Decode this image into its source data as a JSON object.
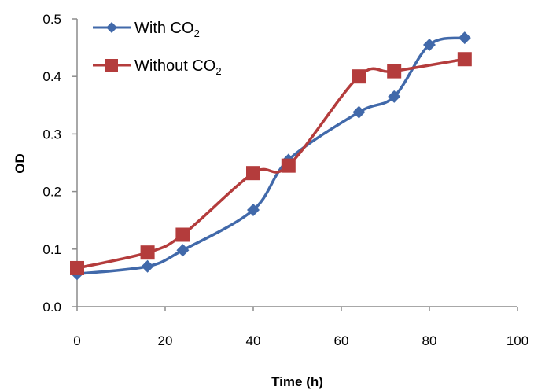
{
  "chart_data": {
    "type": "line",
    "title": "",
    "xlabel": "Time (h)",
    "ylabel": "OD",
    "xlim": [
      0,
      100
    ],
    "ylim": [
      0.0,
      0.5
    ],
    "x_ticks": [
      "0",
      "20",
      "40",
      "60",
      "80",
      "100"
    ],
    "y_ticks": [
      "0.0",
      "0.1",
      "0.2",
      "0.3",
      "0.4",
      "0.5"
    ],
    "grid": false,
    "legend_position": "top-left",
    "series": [
      {
        "name": "With CO2",
        "name_base": "With CO",
        "name_sub": "2",
        "color": "#4169AA",
        "marker": "diamond",
        "x": [
          0,
          16,
          24,
          40,
          48,
          64,
          72,
          80,
          88
        ],
        "values": [
          0.057,
          0.07,
          0.098,
          0.168,
          0.255,
          0.338,
          0.365,
          0.455,
          0.467
        ]
      },
      {
        "name": "Without CO2",
        "name_base": "Without CO",
        "name_sub": "2",
        "color": "#B43C3C",
        "marker": "square",
        "x": [
          0,
          16,
          24,
          40,
          48,
          64,
          72,
          88
        ],
        "values": [
          0.067,
          0.094,
          0.125,
          0.232,
          0.245,
          0.4,
          0.409,
          0.43
        ]
      }
    ]
  }
}
